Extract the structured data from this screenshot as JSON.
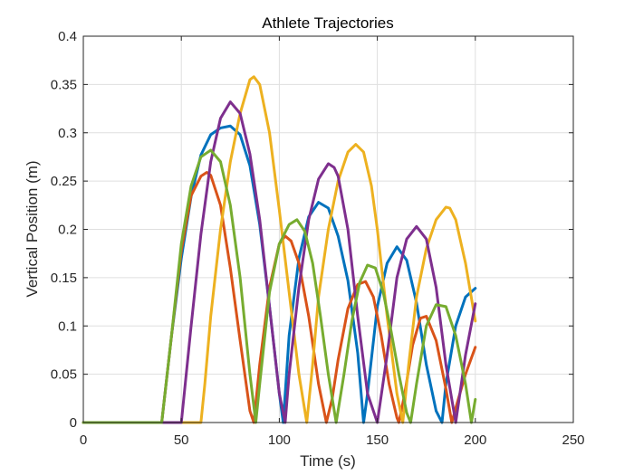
{
  "chart_data": {
    "type": "line",
    "title": "Athlete Trajectories",
    "xlabel": "Time (s)",
    "ylabel": "Vertical Position (m)",
    "xlim": [
      0,
      250
    ],
    "ylim": [
      0,
      0.4
    ],
    "xticks": [
      0,
      50,
      100,
      150,
      200,
      250
    ],
    "xtick_labels": [
      "0",
      "50",
      "100",
      "150",
      "200",
      "250"
    ],
    "yticks": [
      0,
      0.05,
      0.1,
      0.15,
      0.2,
      0.25,
      0.3,
      0.35,
      0.4
    ],
    "ytick_labels": [
      "0",
      "0.05",
      "0.1",
      "0.15",
      "0.2",
      "0.25",
      "0.3",
      "0.35",
      "0.4"
    ],
    "grid": true,
    "legend": "none",
    "series": [
      {
        "color": "#0072BD",
        "x": [
          0,
          40,
          45,
          50,
          55,
          60,
          65,
          70,
          75,
          80,
          85,
          90,
          95,
          100,
          102,
          105,
          110,
          115,
          120,
          125,
          130,
          135,
          140,
          143,
          145,
          150,
          155,
          160,
          165,
          170,
          175,
          180,
          183,
          185,
          190,
          195,
          200
        ],
        "y": [
          0,
          0,
          0.09,
          0.17,
          0.234,
          0.277,
          0.298,
          0.305,
          0.307,
          0.298,
          0.266,
          0.205,
          0.12,
          0.03,
          0,
          0.09,
          0.17,
          0.213,
          0.228,
          0.222,
          0.193,
          0.147,
          0.072,
          0,
          0.03,
          0.12,
          0.165,
          0.182,
          0.168,
          0.124,
          0.06,
          0.012,
          0,
          0.04,
          0.1,
          0.13,
          0.139
        ]
      },
      {
        "color": "#D95319",
        "x": [
          0,
          40,
          45,
          50,
          55,
          60,
          63,
          65,
          70,
          75,
          80,
          85,
          87,
          90,
          95,
          100,
          103,
          106,
          110,
          115,
          120,
          124,
          127,
          130,
          135,
          140,
          144,
          148,
          152,
          156,
          160,
          161,
          164,
          168,
          172,
          175,
          180,
          185,
          188,
          190,
          195,
          200
        ],
        "y": [
          0,
          0,
          0.09,
          0.178,
          0.235,
          0.255,
          0.259,
          0.256,
          0.225,
          0.16,
          0.085,
          0.012,
          0,
          0.06,
          0.14,
          0.185,
          0.193,
          0.188,
          0.165,
          0.11,
          0.04,
          0,
          0.025,
          0.065,
          0.118,
          0.143,
          0.146,
          0.13,
          0.09,
          0.04,
          0.005,
          0,
          0.03,
          0.08,
          0.108,
          0.11,
          0.085,
          0.035,
          0,
          0.015,
          0.05,
          0.078
        ]
      },
      {
        "color": "#EDB120",
        "x": [
          0,
          60,
          62,
          65,
          70,
          75,
          80,
          85,
          87,
          90,
          95,
          100,
          105,
          110,
          114,
          117,
          120,
          125,
          130,
          135,
          139,
          143,
          147,
          150,
          155,
          160,
          163,
          166,
          170,
          175,
          180,
          185,
          187,
          190,
          195,
          200
        ],
        "y": [
          0,
          0,
          0.04,
          0.11,
          0.2,
          0.27,
          0.32,
          0.355,
          0.358,
          0.35,
          0.3,
          0.22,
          0.135,
          0.05,
          0,
          0.06,
          0.13,
          0.2,
          0.25,
          0.28,
          0.288,
          0.28,
          0.245,
          0.2,
          0.11,
          0.03,
          0,
          0.06,
          0.13,
          0.18,
          0.21,
          0.223,
          0.222,
          0.21,
          0.165,
          0.105
        ]
      },
      {
        "color": "#7E2F8E",
        "x": [
          0,
          50,
          55,
          60,
          65,
          70,
          75,
          80,
          85,
          90,
          95,
          100,
          103,
          105,
          110,
          115,
          120,
          125,
          128,
          130,
          135,
          140,
          145,
          150,
          155,
          160,
          165,
          170,
          175,
          180,
          185,
          190,
          195,
          200
        ],
        "y": [
          0,
          0,
          0.1,
          0.195,
          0.27,
          0.315,
          0.332,
          0.32,
          0.278,
          0.21,
          0.12,
          0.03,
          0,
          0.05,
          0.14,
          0.21,
          0.252,
          0.268,
          0.264,
          0.255,
          0.2,
          0.11,
          0.03,
          0,
          0.07,
          0.15,
          0.19,
          0.203,
          0.19,
          0.14,
          0.06,
          0,
          0.07,
          0.123
        ]
      },
      {
        "color": "#77AC30",
        "x": [
          0,
          40,
          45,
          50,
          55,
          60,
          65,
          70,
          75,
          80,
          85,
          88,
          90,
          95,
          100,
          105,
          109,
          113,
          117,
          121,
          125,
          129,
          133,
          137,
          141,
          145,
          149,
          153,
          157,
          161,
          165,
          167,
          170,
          175,
          180,
          185,
          190,
          195,
          198,
          200
        ],
        "y": [
          0,
          0,
          0.09,
          0.185,
          0.245,
          0.275,
          0.282,
          0.27,
          0.225,
          0.15,
          0.05,
          0,
          0.04,
          0.135,
          0.185,
          0.205,
          0.21,
          0.198,
          0.165,
          0.11,
          0.05,
          0,
          0.05,
          0.105,
          0.145,
          0.163,
          0.16,
          0.135,
          0.095,
          0.05,
          0.01,
          0,
          0.04,
          0.1,
          0.122,
          0.12,
          0.09,
          0.04,
          0,
          0.024
        ]
      }
    ]
  }
}
